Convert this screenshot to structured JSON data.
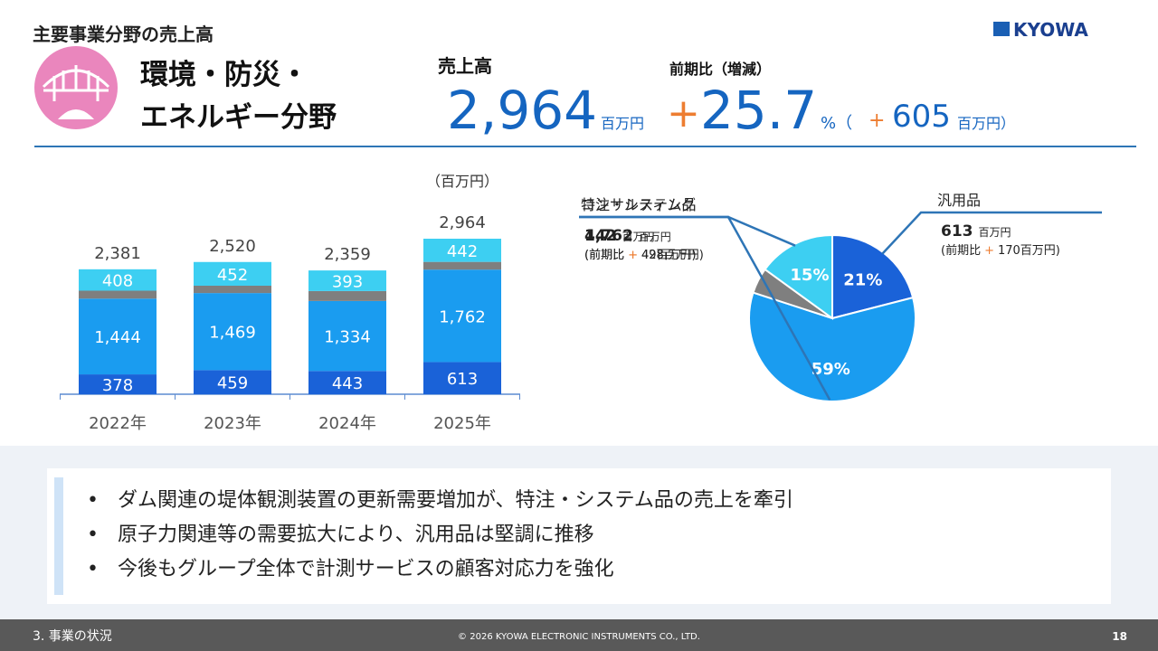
{
  "header": {
    "title": "主要事業分野の売上高",
    "logo": "KYOWA"
  },
  "segment": {
    "name_lines": [
      "環境・防災・",
      "エネルギー分野"
    ]
  },
  "sales": {
    "label": "売上高",
    "value": "2,964",
    "unit": "百万円"
  },
  "change": {
    "label": "前期比（増減）",
    "sign": "+",
    "pct": "25.7",
    "pct_unit": "%（",
    "diff_sign": "+",
    "diff": "605",
    "diff_unit": "百万円）"
  },
  "chart_data": [
    {
      "type": "bar",
      "stacked": true,
      "unit_label": "（百万円）",
      "categories": [
        "2022年",
        "2023年",
        "2024年",
        "2025年"
      ],
      "series": [
        {
          "name": "汎用品",
          "color": "#1a62d8",
          "values": [
            378,
            459,
            443,
            613
          ],
          "value_labels": [
            "378",
            "459",
            "443",
            "613"
          ]
        },
        {
          "name": "特注・システム品",
          "color": "#1a9cf0",
          "values": [
            1444,
            1469,
            1334,
            1762
          ],
          "value_labels": [
            "1,444",
            "1,469",
            "1,334",
            "1,762"
          ]
        },
        {
          "color": "#7f7f7f",
          "values": [
            151,
            140,
            189,
            147
          ]
        },
        {
          "name": "コンサルティング",
          "color": "#3dcff2",
          "values": [
            408,
            452,
            393,
            442
          ],
          "value_labels": [
            "408",
            "452",
            "393",
            "442"
          ]
        }
      ],
      "totals": [
        2381,
        2520,
        2359,
        2964
      ],
      "total_labels": [
        "2,381",
        "2,520",
        "2,359",
        "2,964"
      ]
    },
    {
      "type": "pie",
      "categories": [
        "汎用品",
        "特注・システム品",
        null,
        "コンサルティング"
      ],
      "values": [
        21,
        59,
        5,
        15
      ],
      "value_labels": [
        "21%",
        "59%",
        null,
        "15%"
      ],
      "colors": [
        "#1a62d8",
        "#1a9cf0",
        "#7f7f7f",
        "#3dcff2"
      ],
      "callouts": [
        {
          "amount": "613",
          "unit": "百万円",
          "note": "(前期比",
          "sign": "+",
          "change": "170百万円)"
        },
        {
          "amount": "1,762",
          "unit": "百万円",
          "note": "(前期比",
          "sign": "+",
          "change": "428百万円)"
        },
        null,
        {
          "amount": "442",
          "unit": "百万円",
          "note": "(前期比",
          "sign": "+",
          "change": "49百万円)"
        }
      ]
    }
  ],
  "bullets": [
    "ダム関連の堤体観測装置の更新需要増加が、特注・システム品の売上を牽引",
    "原子力関連等の需要拡大により、汎用品は堅調に推移",
    "今後もグループ全体で計測サービスの顧客対応力を強化"
  ],
  "footer": {
    "section": "3. 事業の状況",
    "copyright": "© 2026 KYOWA ELECTRONIC INSTRUMENTS CO., LTD.",
    "page": "18"
  }
}
